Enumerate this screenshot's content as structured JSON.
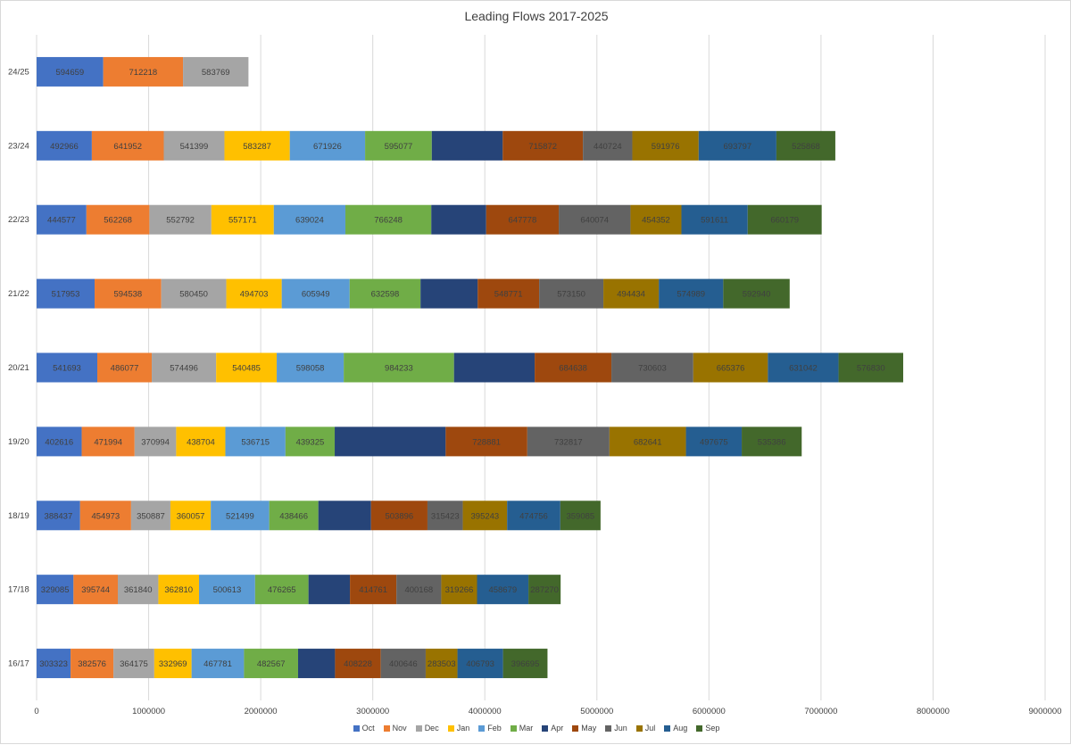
{
  "chart_data": {
    "type": "bar",
    "orientation": "horizontal",
    "stacked": true,
    "title": "Leading Flows 2017-2025",
    "categories": [
      "24/25",
      "23/24",
      "22/23",
      "21/22",
      "20/21",
      "19/20",
      "18/19",
      "17/18",
      "16/17"
    ],
    "xlim": [
      0,
      9000000
    ],
    "x_ticks": [
      "0",
      "1000000",
      "2000000",
      "3000000",
      "4000000",
      "5000000",
      "6000000",
      "7000000",
      "8000000",
      "9000000"
    ],
    "grid": true,
    "legend_position": "bottom",
    "series": [
      {
        "name": "Oct",
        "color": "#4472C4",
        "values": [
          594659,
          492966,
          444577,
          517953,
          541693,
          402616,
          388437,
          329085,
          303323
        ]
      },
      {
        "name": "Nov",
        "color": "#ED7D31",
        "values": [
          712218,
          641952,
          562268,
          594538,
          486077,
          471994,
          454973,
          395744,
          382576
        ]
      },
      {
        "name": "Dec",
        "color": "#A5A5A5",
        "values": [
          583769,
          541399,
          552792,
          580450,
          574496,
          370994,
          350887,
          361840,
          364175
        ]
      },
      {
        "name": "Jan",
        "color": "#FFC000",
        "values": [
          null,
          583287,
          557171,
          494703,
          540485,
          438704,
          360057,
          362810,
          332969
        ]
      },
      {
        "name": "Feb",
        "color": "#5B9BD5",
        "values": [
          null,
          671926,
          639024,
          605949,
          598058,
          536715,
          521499,
          500613,
          467781
        ]
      },
      {
        "name": "Mar",
        "color": "#70AD47",
        "values": [
          null,
          595077,
          766248,
          632598,
          984233,
          439325,
          438466,
          476265,
          482567
        ]
      },
      {
        "name": "Apr",
        "color": "#264478",
        "values": [
          null,
          633000,
          490000,
          510000,
          720000,
          990000,
          470000,
          370000,
          330000
        ]
      },
      {
        "name": "May",
        "color": "#9E480E",
        "values": [
          null,
          715872,
          647778,
          548771,
          684638,
          728881,
          503896,
          414761,
          408228
        ]
      },
      {
        "name": "Jun",
        "color": "#636363",
        "values": [
          null,
          440724,
          640074,
          573150,
          730603,
          732817,
          315423,
          400168,
          400646
        ]
      },
      {
        "name": "Jul",
        "color": "#997300",
        "values": [
          null,
          591976,
          454352,
          494434,
          665376,
          682641,
          395243,
          319266,
          283503
        ]
      },
      {
        "name": "Aug",
        "color": "#255E91",
        "values": [
          null,
          693797,
          591611,
          574989,
          631042,
          497675,
          474756,
          458679,
          406793
        ]
      },
      {
        "name": "Sep",
        "color": "#43682B",
        "values": [
          null,
          525868,
          660179,
          592940,
          576830,
          535386,
          359085,
          287270,
          396695
        ]
      }
    ],
    "data_labels": [
      [
        "594659",
        "712218",
        "583769",
        "",
        "",
        "",
        "",
        "",
        "",
        "",
        "",
        ""
      ],
      [
        "492966",
        "641952",
        "541399",
        "583287",
        "671926",
        "595077",
        "",
        "715872",
        "440724",
        "591976",
        "693797",
        "525868"
      ],
      [
        "444577",
        "562268",
        "552792",
        "557171",
        "639024",
        "766248",
        "",
        "647778",
        "640074",
        "454352",
        "591611",
        "660179"
      ],
      [
        "517953",
        "594538",
        "580450",
        "494703",
        "605949",
        "632598",
        "",
        "548771",
        "573150",
        "494434",
        "574989",
        "592940"
      ],
      [
        "541693",
        "486077",
        "574496",
        "540485",
        "598058",
        "984233",
        "",
        "684638",
        "730603",
        "665376",
        "631042",
        "576830"
      ],
      [
        "402616",
        "471994",
        "370994",
        "438704",
        "536715",
        "439325",
        "",
        "728881",
        "732817",
        "682641",
        "497675",
        "535386"
      ],
      [
        "388437",
        "454973",
        "350887",
        "360057",
        "521499",
        "438466",
        "",
        "503896",
        "315423",
        "395243",
        "474756",
        "359085"
      ],
      [
        "329085",
        "395744",
        "361840",
        "362810",
        "500613",
        "476265",
        "",
        "414761",
        "400168",
        "319266",
        "458679",
        "287270"
      ],
      [
        "303323",
        "382576",
        "364175",
        "332969",
        "467781",
        "482567",
        "",
        "408228",
        "400646",
        "283503",
        "406793",
        "396695"
      ]
    ]
  }
}
